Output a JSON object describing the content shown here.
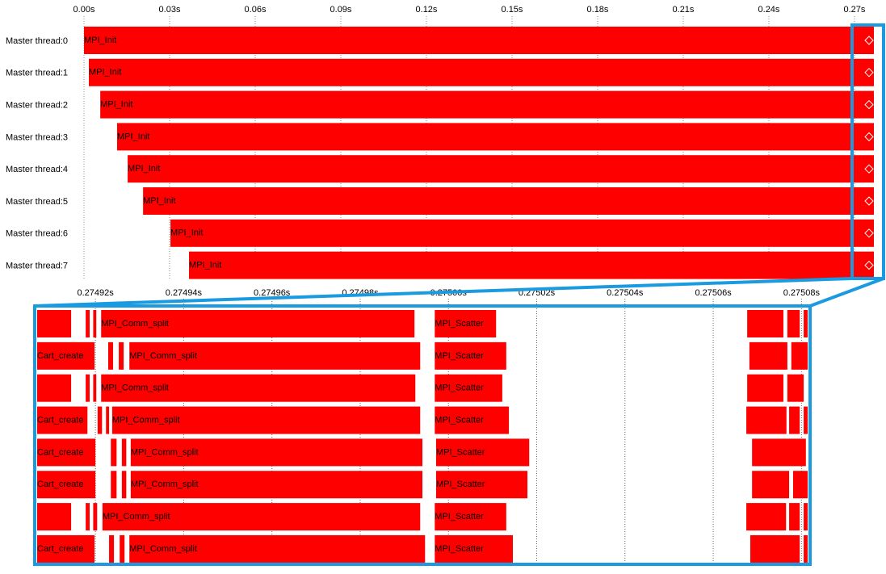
{
  "overview": {
    "xlim": [
      0,
      0.2768
    ],
    "ticks": [
      {
        "value": 0,
        "label": "0.00s"
      },
      {
        "value": 0.03,
        "label": "0.03s"
      },
      {
        "value": 0.06,
        "label": "0.06s"
      },
      {
        "value": 0.09,
        "label": "0.09s"
      },
      {
        "value": 0.12,
        "label": "0.12s"
      },
      {
        "value": 0.15,
        "label": "0.15s"
      },
      {
        "value": 0.18,
        "label": "0.18s"
      },
      {
        "value": 0.21,
        "label": "0.21s"
      },
      {
        "value": 0.24,
        "label": "0.24s"
      },
      {
        "value": 0.27,
        "label": "0.27s"
      }
    ],
    "rows": [
      {
        "label": "Master thread:0",
        "bar": {
          "start": 0,
          "end": 0.2768,
          "label": "MPI_Init"
        },
        "marker": 0.2751
      },
      {
        "label": "Master thread:1",
        "bar": {
          "start": 0.0017,
          "end": 0.2768,
          "label": "MPI_Init"
        },
        "marker": 0.2751
      },
      {
        "label": "Master thread:2",
        "bar": {
          "start": 0.0057,
          "end": 0.2768,
          "label": "MPI_Init"
        },
        "marker": 0.2751
      },
      {
        "label": "Master thread:3",
        "bar": {
          "start": 0.0116,
          "end": 0.2768,
          "label": "MPI_Init"
        },
        "marker": 0.2751
      },
      {
        "label": "Master thread:4",
        "bar": {
          "start": 0.0153,
          "end": 0.2768,
          "label": "MPI_Init"
        },
        "marker": 0.2751
      },
      {
        "label": "Master thread:5",
        "bar": {
          "start": 0.0207,
          "end": 0.2768,
          "label": "MPI_Init"
        },
        "marker": 0.2751
      },
      {
        "label": "Master thread:6",
        "bar": {
          "start": 0.0303,
          "end": 0.2768,
          "label": "MPI_Init"
        },
        "marker": 0.2751
      },
      {
        "label": "Master thread:7",
        "bar": {
          "start": 0.0368,
          "end": 0.2768,
          "label": "MPI_Init"
        },
        "marker": 0.2751
      }
    ]
  },
  "zoom": {
    "xlim": [
      0.2749068,
      0.2750814
    ],
    "ticks": [
      {
        "value": 0.27492,
        "label": "0.27492s"
      },
      {
        "value": 0.27494,
        "label": "0.27494s"
      },
      {
        "value": 0.27496,
        "label": "0.27496s"
      },
      {
        "value": 0.27498,
        "label": "0.27498s"
      },
      {
        "value": 0.275,
        "label": "0.27500s"
      },
      {
        "value": 0.27502,
        "label": "0.27502s"
      },
      {
        "value": 0.27504,
        "label": "0.27504s"
      },
      {
        "value": 0.27506,
        "label": "0.27506s"
      },
      {
        "value": 0.27508,
        "label": "0.27508s"
      }
    ],
    "rows": [
      {
        "bars": [
          {
            "start": 0.2749068,
            "end": 0.2749145
          },
          {
            "start": 0.2749178,
            "end": 0.2749187
          },
          {
            "start": 0.2749195,
            "end": 0.2749202
          },
          {
            "start": 0.2749213,
            "end": 0.2749923,
            "label": "MPI_Comm_split"
          },
          {
            "start": 0.2749969,
            "end": 0.2750108,
            "label": "MPI_Scatter"
          },
          {
            "start": 0.2750677,
            "end": 0.2750759
          },
          {
            "start": 0.2750768,
            "end": 0.2750796
          },
          {
            "start": 0.2750805,
            "end": 0.2750814
          }
        ]
      },
      {
        "bars": [
          {
            "start": 0.2749068,
            "end": 0.2749198,
            "label": "Cart_create"
          },
          {
            "start": 0.2749229,
            "end": 0.274924
          },
          {
            "start": 0.2749253,
            "end": 0.2749264
          },
          {
            "start": 0.2749277,
            "end": 0.2749936,
            "label": "MPI_Comm_split"
          },
          {
            "start": 0.2749969,
            "end": 0.2750131,
            "label": "MPI_Scatter"
          },
          {
            "start": 0.2750682,
            "end": 0.2750768
          },
          {
            "start": 0.2750777,
            "end": 0.2750814
          }
        ]
      },
      {
        "bars": [
          {
            "start": 0.2749068,
            "end": 0.2749145
          },
          {
            "start": 0.2749178,
            "end": 0.2749187
          },
          {
            "start": 0.2749195,
            "end": 0.2749202
          },
          {
            "start": 0.2749213,
            "end": 0.2749925,
            "label": "MPI_Comm_split"
          },
          {
            "start": 0.2749969,
            "end": 0.2750122,
            "label": "MPI_Scatter"
          },
          {
            "start": 0.2750677,
            "end": 0.2750759
          },
          {
            "start": 0.2750768,
            "end": 0.2750805
          }
        ]
      },
      {
        "bars": [
          {
            "start": 0.2749068,
            "end": 0.2749182,
            "label": "Cart_create"
          },
          {
            "start": 0.2749205,
            "end": 0.2749215
          },
          {
            "start": 0.2749224,
            "end": 0.2749231
          },
          {
            "start": 0.2749238,
            "end": 0.2749936,
            "label": "MPI_Comm_split"
          },
          {
            "start": 0.2749969,
            "end": 0.2750137,
            "label": "MPI_Scatter"
          },
          {
            "start": 0.2750675,
            "end": 0.2750766
          },
          {
            "start": 0.2750772,
            "end": 0.2750796
          },
          {
            "start": 0.2750805,
            "end": 0.2750814
          }
        ]
      },
      {
        "bars": [
          {
            "start": 0.2749068,
            "end": 0.27492,
            "label": "Cart_create"
          },
          {
            "start": 0.2749235,
            "end": 0.2749248
          },
          {
            "start": 0.274926,
            "end": 0.274927
          },
          {
            "start": 0.274928,
            "end": 0.2749941,
            "label": "MPI_Comm_split"
          },
          {
            "start": 0.2749972,
            "end": 0.2750183,
            "label": "MPI_Scatter"
          },
          {
            "start": 0.2750688,
            "end": 0.275081
          }
        ]
      },
      {
        "bars": [
          {
            "start": 0.2749068,
            "end": 0.27492,
            "label": "Cart_create"
          },
          {
            "start": 0.2749235,
            "end": 0.2749248
          },
          {
            "start": 0.274926,
            "end": 0.274927
          },
          {
            "start": 0.274928,
            "end": 0.2749941,
            "label": "MPI_Comm_split"
          },
          {
            "start": 0.2749972,
            "end": 0.2750179,
            "label": "MPI_Scatter"
          },
          {
            "start": 0.2750688,
            "end": 0.2750772
          },
          {
            "start": 0.2750781,
            "end": 0.2750814
          }
        ]
      },
      {
        "bars": [
          {
            "start": 0.2749068,
            "end": 0.2749145
          },
          {
            "start": 0.2749178,
            "end": 0.2749187
          },
          {
            "start": 0.2749195,
            "end": 0.2749204
          },
          {
            "start": 0.2749216,
            "end": 0.2749936,
            "label": "MPI_Comm_split"
          },
          {
            "start": 0.2749969,
            "end": 0.2750131,
            "label": "MPI_Scatter"
          },
          {
            "start": 0.2750675,
            "end": 0.2750765
          },
          {
            "start": 0.2750772,
            "end": 0.2750796
          },
          {
            "start": 0.2750805,
            "end": 0.2750814
          }
        ]
      },
      {
        "bars": [
          {
            "start": 0.2749068,
            "end": 0.2749198,
            "label": "Cart_create"
          },
          {
            "start": 0.2749231,
            "end": 0.2749242
          },
          {
            "start": 0.2749255,
            "end": 0.2749266
          },
          {
            "start": 0.2749277,
            "end": 0.2749947,
            "label": "MPI_Comm_split"
          },
          {
            "start": 0.2749969,
            "end": 0.2750146,
            "label": "MPI_Scatter"
          },
          {
            "start": 0.2750684,
            "end": 0.2750796
          },
          {
            "start": 0.2750805,
            "end": 0.2750814
          }
        ]
      }
    ]
  }
}
